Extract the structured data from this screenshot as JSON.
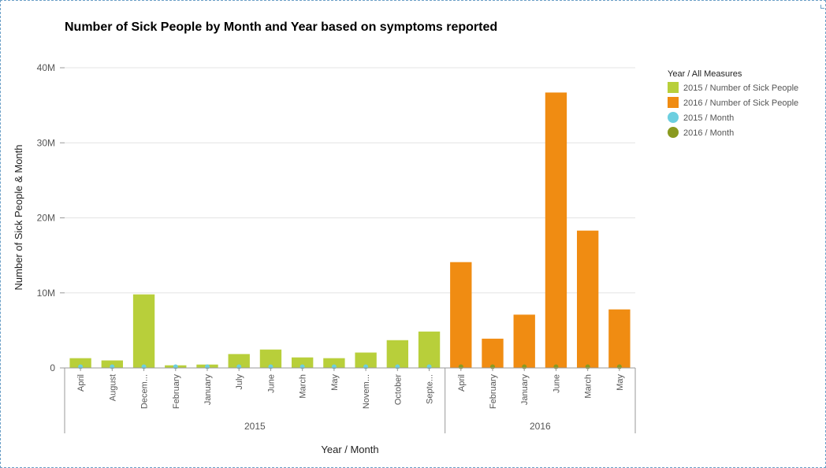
{
  "chart_data": {
    "type": "bar",
    "title": "Number of Sick People by Month and Year based on symptoms reported",
    "xlabel": "Year / Month",
    "ylabel": "Number of Sick People & Month",
    "ylim": [
      0,
      40000000
    ],
    "y_ticks": [
      {
        "value": 0,
        "label": "0"
      },
      {
        "value": 10000000,
        "label": "10M"
      },
      {
        "value": 20000000,
        "label": "20M"
      },
      {
        "value": 30000000,
        "label": "30M"
      },
      {
        "value": 40000000,
        "label": "40M"
      }
    ],
    "grid": true,
    "legend_position": "top-right",
    "legend": {
      "title": "Year / All Measures",
      "items": [
        {
          "label": "2015 / Number of Sick People",
          "shape": "square",
          "color": "#b8cf3a"
        },
        {
          "label": "2016 / Number of Sick People",
          "shape": "square",
          "color": "#f08c12"
        },
        {
          "label": "2015 / Month",
          "shape": "circle",
          "color": "#6ccfe0"
        },
        {
          "label": "2016 / Month",
          "shape": "circle",
          "color": "#8a9a1f"
        }
      ]
    },
    "groups": [
      {
        "year": "2015",
        "bar_color": "#b8cf3a",
        "dot_color": "#6ccfe0",
        "categories": [
          "April",
          "August",
          "Decem...",
          "February",
          "January",
          "July",
          "June",
          "March",
          "May",
          "Novem...",
          "October",
          "Septe..."
        ],
        "sick_people": [
          1300000,
          1000000,
          9800000,
          350000,
          450000,
          1850000,
          2450000,
          1400000,
          1300000,
          2050000,
          3700000,
          4850000
        ],
        "month": [
          4,
          8,
          12,
          2,
          1,
          7,
          6,
          3,
          5,
          11,
          10,
          9
        ]
      },
      {
        "year": "2016",
        "bar_color": "#f08c12",
        "dot_color": "#8a9a1f",
        "categories": [
          "April",
          "February",
          "January",
          "June",
          "March",
          "May"
        ],
        "sick_people": [
          14100000,
          3900000,
          7100000,
          36700000,
          18300000,
          7800000
        ],
        "month": [
          4,
          2,
          1,
          6,
          3,
          5
        ]
      }
    ]
  }
}
